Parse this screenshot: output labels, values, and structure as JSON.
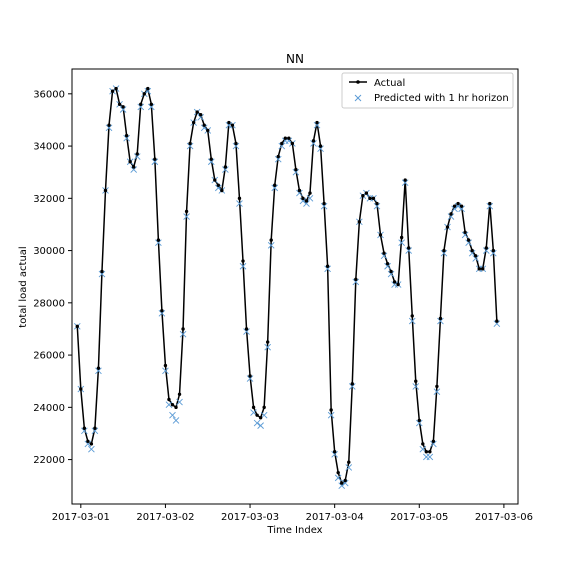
{
  "chart_data": {
    "type": "line",
    "title": "NN",
    "xlabel": "Time Index",
    "ylabel": "total load actual",
    "xlim": [
      "2017-02-28T21:30",
      "2017-03-06T04:00"
    ],
    "ylim": [
      20300,
      36950
    ],
    "x_ticks": [
      "2017-03-01",
      "2017-03-02",
      "2017-03-03",
      "2017-03-04",
      "2017-03-05",
      "2017-03-06"
    ],
    "y_ticks": [
      22000,
      24000,
      26000,
      28000,
      30000,
      32000,
      34000,
      36000
    ],
    "grid": false,
    "legend_position": "top-right",
    "x_start": "2017-02-28T23:00",
    "x_step_hours": 1,
    "series": [
      {
        "name": "Actual",
        "color": "#000000",
        "marker": "dot",
        "values": [
          27100,
          24700,
          23200,
          22700,
          22600,
          23200,
          25500,
          29200,
          32300,
          34800,
          36100,
          36200,
          35600,
          35500,
          34400,
          33400,
          33200,
          33700,
          35600,
          36000,
          36200,
          35600,
          33500,
          30400,
          27700,
          25600,
          24300,
          24100,
          24000,
          24500,
          27000,
          31500,
          34100,
          34900,
          35300,
          35200,
          34800,
          34600,
          33500,
          32700,
          32500,
          32300,
          33200,
          34900,
          34800,
          34100,
          32000,
          29600,
          27000,
          25200,
          24000,
          23700,
          23600,
          24000,
          26500,
          30400,
          32500,
          33600,
          34100,
          34300,
          34300,
          34100,
          33100,
          32300,
          32000,
          31900,
          32200,
          34200,
          34900,
          34000,
          31800,
          29400,
          23900,
          22300,
          21500,
          21100,
          21200,
          21900,
          24900,
          28900,
          31100,
          32100,
          32200,
          32000,
          32000,
          31800,
          30600,
          29900,
          29500,
          29200,
          28800,
          28700,
          30500,
          32700,
          30100,
          27500,
          25000,
          23500,
          22600,
          22300,
          22300,
          22700,
          24800,
          27400,
          30000,
          30900,
          31400,
          31700,
          31800,
          31700,
          30700,
          30400,
          30000,
          29800,
          29300,
          29300,
          30100,
          31800,
          30000,
          27300
        ]
      },
      {
        "name": "Predicted with 1 hr horizon",
        "color": "#5b9bd5",
        "marker": "x",
        "values": [
          27100,
          24700,
          23100,
          22600,
          22400,
          23100,
          25400,
          29100,
          32300,
          34700,
          36100,
          36200,
          35600,
          35400,
          34300,
          33400,
          33100,
          33600,
          35500,
          36000,
          36100,
          35500,
          33400,
          30300,
          27600,
          25400,
          24100,
          23700,
          23500,
          24200,
          26800,
          31300,
          34000,
          34900,
          35300,
          35100,
          34700,
          34600,
          33400,
          32700,
          32400,
          32300,
          33100,
          34800,
          34800,
          34000,
          31800,
          29400,
          26900,
          25100,
          23800,
          23400,
          23300,
          23700,
          26300,
          30200,
          32400,
          33500,
          34000,
          34200,
          34200,
          34100,
          33000,
          32200,
          31900,
          31800,
          32000,
          34100,
          34800,
          33900,
          31700,
          29300,
          23700,
          22200,
          21300,
          21000,
          21100,
          21700,
          24800,
          28800,
          31100,
          32100,
          32200,
          32000,
          32000,
          31700,
          30600,
          29800,
          29400,
          29100,
          28700,
          28700,
          30300,
          32600,
          30000,
          27300,
          24800,
          23400,
          22400,
          22100,
          22100,
          22600,
          24600,
          27300,
          29900,
          30900,
          31300,
          31600,
          31700,
          31600,
          30600,
          30300,
          29900,
          29700,
          29300,
          29300,
          30000,
          31700,
          29900,
          27200
        ]
      }
    ]
  }
}
